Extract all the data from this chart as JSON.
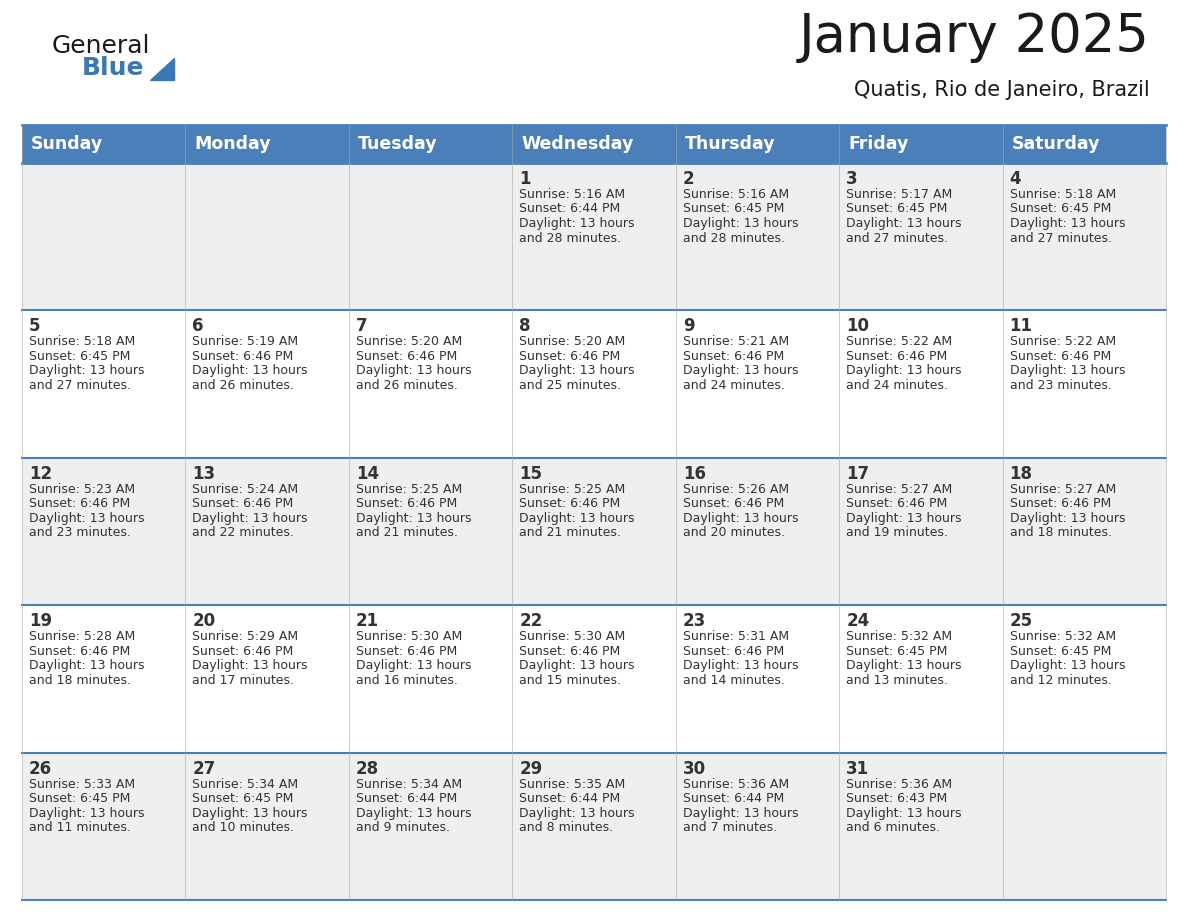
{
  "title": "January 2025",
  "subtitle": "Quatis, Rio de Janeiro, Brazil",
  "days_of_week": [
    "Sunday",
    "Monday",
    "Tuesday",
    "Wednesday",
    "Thursday",
    "Friday",
    "Saturday"
  ],
  "header_bg": "#4a7fba",
  "header_text": "#ffffff",
  "row_bg_light": "#efefef",
  "row_bg_white": "#ffffff",
  "text_color": "#333333",
  "line_color": "#4a7fba",
  "title_color": "#1a1a1a",
  "logo_general_color": "#1a1a1a",
  "logo_blue_color": "#3a78b5",
  "calendar_data": [
    [
      {
        "day": null,
        "sunrise": null,
        "sunset": null,
        "daylight": null
      },
      {
        "day": null,
        "sunrise": null,
        "sunset": null,
        "daylight": null
      },
      {
        "day": null,
        "sunrise": null,
        "sunset": null,
        "daylight": null
      },
      {
        "day": 1,
        "sunrise": "5:16 AM",
        "sunset": "6:44 PM",
        "daylight": "13 hours and 28 minutes."
      },
      {
        "day": 2,
        "sunrise": "5:16 AM",
        "sunset": "6:45 PM",
        "daylight": "13 hours and 28 minutes."
      },
      {
        "day": 3,
        "sunrise": "5:17 AM",
        "sunset": "6:45 PM",
        "daylight": "13 hours and 27 minutes."
      },
      {
        "day": 4,
        "sunrise": "5:18 AM",
        "sunset": "6:45 PM",
        "daylight": "13 hours and 27 minutes."
      }
    ],
    [
      {
        "day": 5,
        "sunrise": "5:18 AM",
        "sunset": "6:45 PM",
        "daylight": "13 hours and 27 minutes."
      },
      {
        "day": 6,
        "sunrise": "5:19 AM",
        "sunset": "6:46 PM",
        "daylight": "13 hours and 26 minutes."
      },
      {
        "day": 7,
        "sunrise": "5:20 AM",
        "sunset": "6:46 PM",
        "daylight": "13 hours and 26 minutes."
      },
      {
        "day": 8,
        "sunrise": "5:20 AM",
        "sunset": "6:46 PM",
        "daylight": "13 hours and 25 minutes."
      },
      {
        "day": 9,
        "sunrise": "5:21 AM",
        "sunset": "6:46 PM",
        "daylight": "13 hours and 24 minutes."
      },
      {
        "day": 10,
        "sunrise": "5:22 AM",
        "sunset": "6:46 PM",
        "daylight": "13 hours and 24 minutes."
      },
      {
        "day": 11,
        "sunrise": "5:22 AM",
        "sunset": "6:46 PM",
        "daylight": "13 hours and 23 minutes."
      }
    ],
    [
      {
        "day": 12,
        "sunrise": "5:23 AM",
        "sunset": "6:46 PM",
        "daylight": "13 hours and 23 minutes."
      },
      {
        "day": 13,
        "sunrise": "5:24 AM",
        "sunset": "6:46 PM",
        "daylight": "13 hours and 22 minutes."
      },
      {
        "day": 14,
        "sunrise": "5:25 AM",
        "sunset": "6:46 PM",
        "daylight": "13 hours and 21 minutes."
      },
      {
        "day": 15,
        "sunrise": "5:25 AM",
        "sunset": "6:46 PM",
        "daylight": "13 hours and 21 minutes."
      },
      {
        "day": 16,
        "sunrise": "5:26 AM",
        "sunset": "6:46 PM",
        "daylight": "13 hours and 20 minutes."
      },
      {
        "day": 17,
        "sunrise": "5:27 AM",
        "sunset": "6:46 PM",
        "daylight": "13 hours and 19 minutes."
      },
      {
        "day": 18,
        "sunrise": "5:27 AM",
        "sunset": "6:46 PM",
        "daylight": "13 hours and 18 minutes."
      }
    ],
    [
      {
        "day": 19,
        "sunrise": "5:28 AM",
        "sunset": "6:46 PM",
        "daylight": "13 hours and 18 minutes."
      },
      {
        "day": 20,
        "sunrise": "5:29 AM",
        "sunset": "6:46 PM",
        "daylight": "13 hours and 17 minutes."
      },
      {
        "day": 21,
        "sunrise": "5:30 AM",
        "sunset": "6:46 PM",
        "daylight": "13 hours and 16 minutes."
      },
      {
        "day": 22,
        "sunrise": "5:30 AM",
        "sunset": "6:46 PM",
        "daylight": "13 hours and 15 minutes."
      },
      {
        "day": 23,
        "sunrise": "5:31 AM",
        "sunset": "6:46 PM",
        "daylight": "13 hours and 14 minutes."
      },
      {
        "day": 24,
        "sunrise": "5:32 AM",
        "sunset": "6:45 PM",
        "daylight": "13 hours and 13 minutes."
      },
      {
        "day": 25,
        "sunrise": "5:32 AM",
        "sunset": "6:45 PM",
        "daylight": "13 hours and 12 minutes."
      }
    ],
    [
      {
        "day": 26,
        "sunrise": "5:33 AM",
        "sunset": "6:45 PM",
        "daylight": "13 hours and 11 minutes."
      },
      {
        "day": 27,
        "sunrise": "5:34 AM",
        "sunset": "6:45 PM",
        "daylight": "13 hours and 10 minutes."
      },
      {
        "day": 28,
        "sunrise": "5:34 AM",
        "sunset": "6:44 PM",
        "daylight": "13 hours and 9 minutes."
      },
      {
        "day": 29,
        "sunrise": "5:35 AM",
        "sunset": "6:44 PM",
        "daylight": "13 hours and 8 minutes."
      },
      {
        "day": 30,
        "sunrise": "5:36 AM",
        "sunset": "6:44 PM",
        "daylight": "13 hours and 7 minutes."
      },
      {
        "day": 31,
        "sunrise": "5:36 AM",
        "sunset": "6:43 PM",
        "daylight": "13 hours and 6 minutes."
      },
      {
        "day": null,
        "sunrise": null,
        "sunset": null,
        "daylight": null
      }
    ]
  ]
}
